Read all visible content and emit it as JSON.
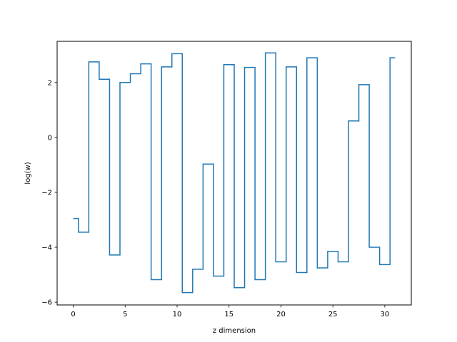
{
  "chart_data": {
    "type": "line",
    "drawstyle": "steps-mid",
    "xlabel": "z dimension",
    "ylabel": "log(w)",
    "xlim": [
      -1.55,
      32.55
    ],
    "ylim": [
      -6.1,
      3.5
    ],
    "xticks": [
      0,
      5,
      10,
      15,
      20,
      25,
      30
    ],
    "yticks": [
      -6,
      -4,
      -2,
      0,
      2
    ],
    "grid": false,
    "line_color": "#1f77b4",
    "x": [
      0,
      1,
      2,
      3,
      4,
      5,
      6,
      7,
      8,
      9,
      10,
      11,
      12,
      13,
      14,
      15,
      16,
      17,
      18,
      19,
      20,
      21,
      22,
      23,
      24,
      25,
      26,
      27,
      28,
      29,
      30,
      31
    ],
    "values": [
      -2.95,
      -3.45,
      2.75,
      2.12,
      -4.28,
      2.0,
      2.32,
      2.68,
      -5.18,
      2.57,
      3.05,
      -5.65,
      -4.8,
      -0.97,
      -5.05,
      2.65,
      -5.47,
      2.55,
      -5.18,
      3.08,
      -4.53,
      2.57,
      -4.92,
      2.9,
      -4.75,
      -4.15,
      -4.53,
      0.6,
      1.92,
      -4.0,
      -4.63,
      2.9
    ]
  }
}
